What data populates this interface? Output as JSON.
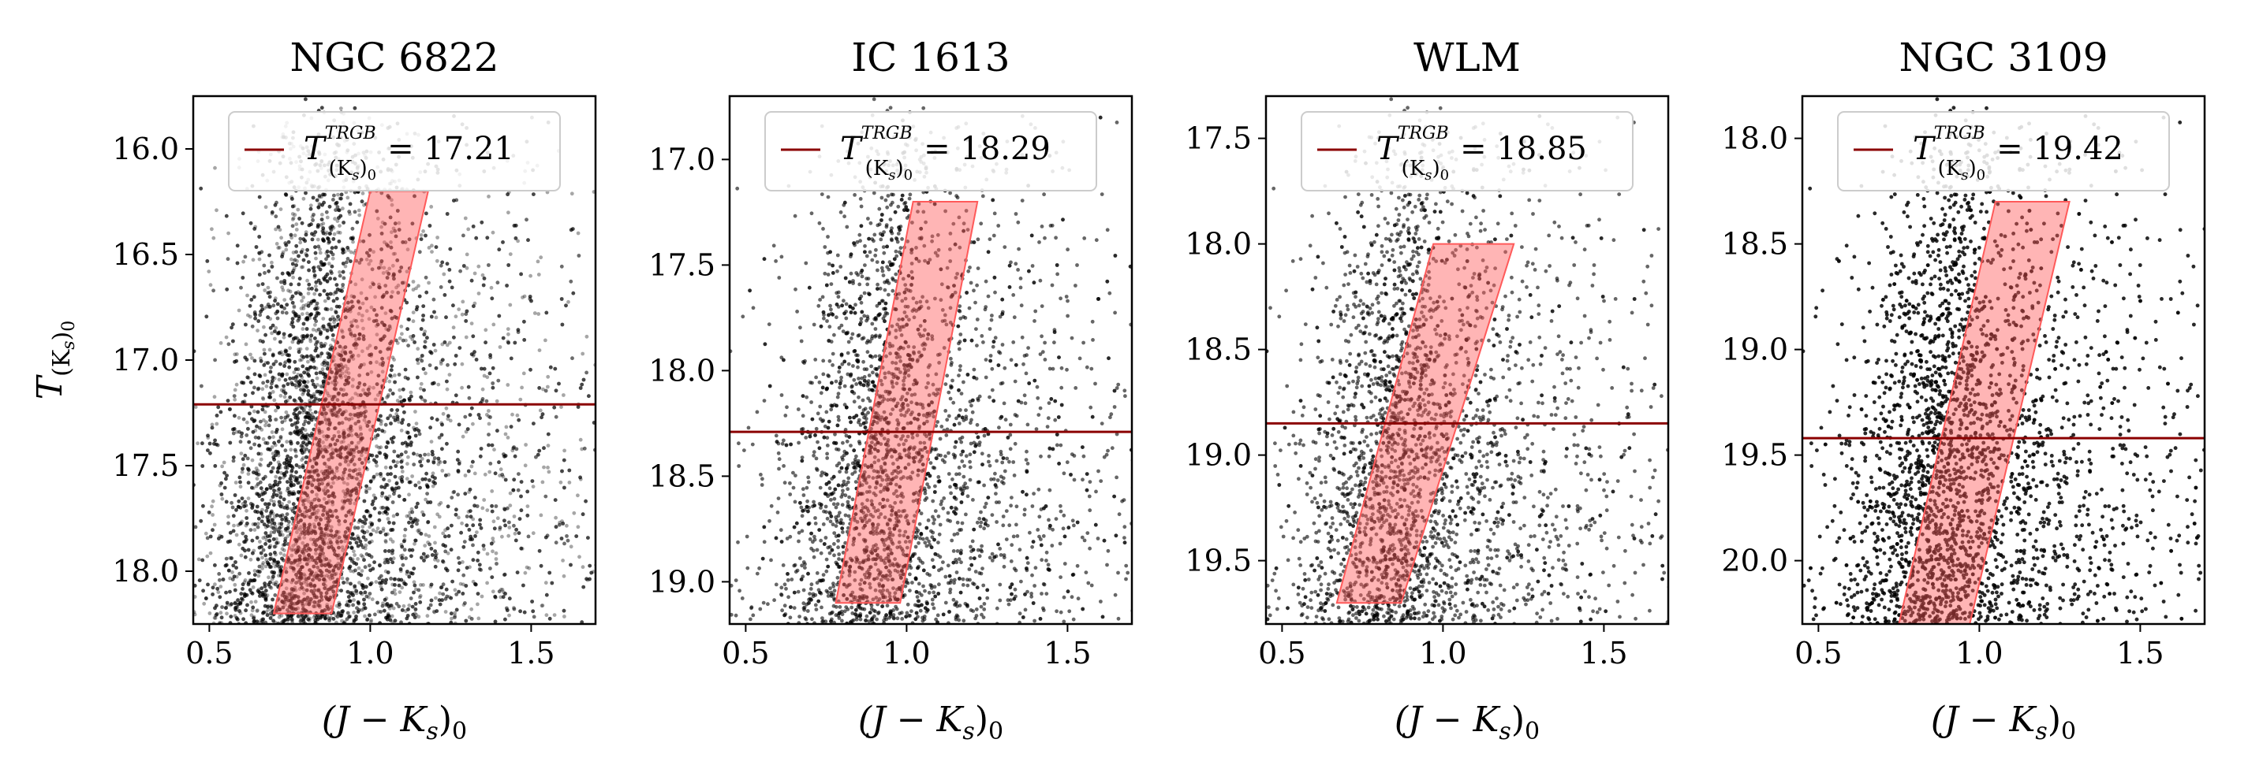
{
  "figure": {
    "xlabel": "(J − K",
    "xlabel_sub": "s",
    "xlabel_tail": ")",
    "xlabel_tail_sub": "0",
    "ylabel": "T",
    "ylabel_sub": "(K",
    "ylabel_sub2": "s",
    "ylabel_sub3": ")",
    "ylabel_sub4": "0"
  },
  "colors": {
    "trgb_line": "#8b0000",
    "band_fill": "#ff5a5a",
    "points": "#000000"
  },
  "chart_data": [
    {
      "type": "scatter",
      "title": "NGC 6822",
      "xlim": [
        0.45,
        1.7
      ],
      "ylim": [
        18.25,
        15.75
      ],
      "xticks": [
        "0.5",
        "1.0",
        "1.5"
      ],
      "xtick_values": [
        0.5,
        1.0,
        1.5
      ],
      "yticks": [
        "16.0",
        "16.5",
        "17.0",
        "17.5",
        "18.0"
      ],
      "ytick_values": [
        16.0,
        16.5,
        17.0,
        17.5,
        18.0
      ],
      "trgb": 17.21,
      "legend_label": "T",
      "legend_sup": "TRGB",
      "legend_sub": "(K",
      "legend_sub2": "s",
      "legend_sub3": ")",
      "legend_sub4": "0",
      "legend_value": "= 17.21",
      "band": [
        [
          0.7,
          18.2
        ],
        [
          0.88,
          18.2
        ],
        [
          1.18,
          16.2
        ],
        [
          1.0,
          16.2
        ]
      ],
      "density": "very high",
      "rgb_color_center": 0.78
    },
    {
      "type": "scatter",
      "title": "IC 1613",
      "xlim": [
        0.45,
        1.7
      ],
      "ylim": [
        19.2,
        16.7
      ],
      "xticks": [
        "0.5",
        "1.0",
        "1.5"
      ],
      "xtick_values": [
        0.5,
        1.0,
        1.5
      ],
      "yticks": [
        "17.0",
        "17.5",
        "18.0",
        "18.5",
        "19.0"
      ],
      "ytick_values": [
        17.0,
        17.5,
        18.0,
        18.5,
        19.0
      ],
      "trgb": 18.29,
      "legend_label": "T",
      "legend_sup": "TRGB",
      "legend_sub": "(K",
      "legend_sub2": "s",
      "legend_sub3": ")",
      "legend_sub4": "0",
      "legend_value": "= 18.29",
      "band": [
        [
          0.78,
          19.1
        ],
        [
          0.98,
          19.1
        ],
        [
          1.22,
          17.2
        ],
        [
          1.02,
          17.2
        ]
      ],
      "density": "medium",
      "rgb_color_center": 0.88
    },
    {
      "type": "scatter",
      "title": "WLM",
      "xlim": [
        0.45,
        1.7
      ],
      "ylim": [
        19.8,
        17.3
      ],
      "xticks": [
        "0.5",
        "1.0",
        "1.5"
      ],
      "xtick_values": [
        0.5,
        1.0,
        1.5
      ],
      "yticks": [
        "17.5",
        "18.0",
        "18.5",
        "19.0",
        "19.5"
      ],
      "ytick_values": [
        17.5,
        18.0,
        18.5,
        19.0,
        19.5
      ],
      "trgb": 18.85,
      "legend_label": "T",
      "legend_sup": "TRGB",
      "legend_sub": "(K",
      "legend_sub2": "s",
      "legend_sub3": ")",
      "legend_sub4": "0",
      "legend_value": "= 18.85",
      "band": [
        [
          0.67,
          19.7
        ],
        [
          0.87,
          19.7
        ],
        [
          1.22,
          18.0
        ],
        [
          0.97,
          18.0
        ]
      ],
      "density": "medium",
      "rgb_color_center": 0.82
    },
    {
      "type": "scatter",
      "title": "NGC 3109",
      "xlim": [
        0.45,
        1.7
      ],
      "ylim": [
        20.3,
        17.8
      ],
      "xticks": [
        "0.5",
        "1.0",
        "1.5"
      ],
      "xtick_values": [
        0.5,
        1.0,
        1.5
      ],
      "yticks": [
        "18.0",
        "18.5",
        "19.0",
        "19.5",
        "20.0"
      ],
      "ytick_values": [
        18.0,
        18.5,
        19.0,
        19.5,
        20.0
      ],
      "trgb": 19.42,
      "legend_label": "T",
      "legend_sup": "TRGB",
      "legend_sub": "(K",
      "legend_sub2": "s",
      "legend_sub3": ")",
      "legend_sub4": "0",
      "legend_value": "= 19.42",
      "band": [
        [
          0.75,
          20.3
        ],
        [
          0.97,
          20.3
        ],
        [
          1.28,
          18.3
        ],
        [
          1.05,
          18.3
        ]
      ],
      "density": "high",
      "rgb_color_center": 0.85
    }
  ]
}
